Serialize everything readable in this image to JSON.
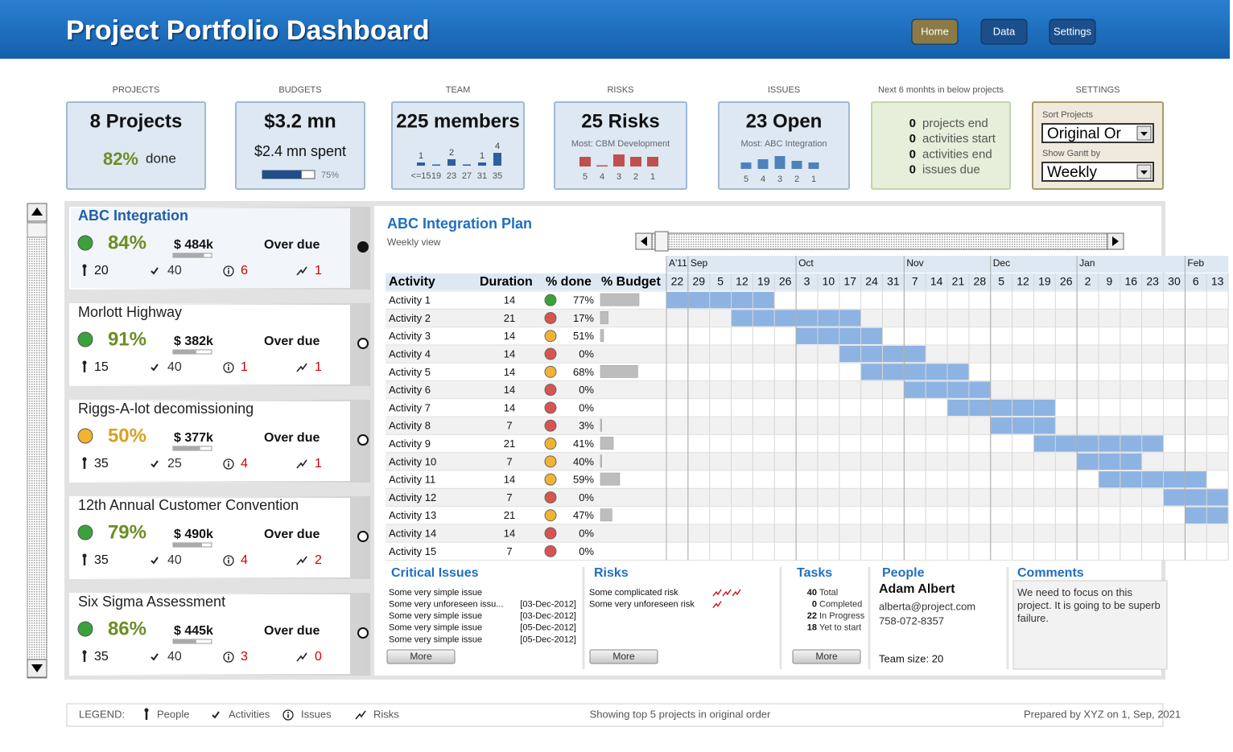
{
  "header": {
    "title": "Project Portfolio Dashboard",
    "nav": [
      "Home",
      "Data",
      "Settings"
    ]
  },
  "kpis": {
    "projects": {
      "label": "PROJECTS",
      "value": "8 Projects",
      "done": "82%",
      "done_label": "done"
    },
    "budgets": {
      "label": "BUDGETS",
      "value": "$3.2 mn",
      "spent": "$2.4 mn spent",
      "progress": 75,
      "progress_label": "75%"
    },
    "team": {
      "label": "TEAM",
      "value": "225 members",
      "chart": {
        "type": "bar",
        "categories": [
          "<=15",
          "19",
          "23",
          "27",
          "31",
          "35"
        ],
        "values": [
          1,
          0,
          2,
          0,
          1,
          4
        ],
        "value_labels": [
          "1",
          null,
          "2",
          null,
          "1",
          "4"
        ],
        "color": "#2f5f9e"
      }
    },
    "risks": {
      "label": "RISKS",
      "value": "25 Risks",
      "note": "Most: CBM Development",
      "chart": {
        "type": "bar",
        "categories": [
          5,
          4,
          3,
          2,
          1
        ],
        "values": [
          4,
          0,
          5,
          4,
          4
        ],
        "color": "#c0504d"
      }
    },
    "issues": {
      "label": "ISSUES",
      "value": "23 Open",
      "note": "Most: ABC Integration",
      "chart": {
        "type": "bar",
        "categories": [
          5,
          4,
          3,
          2,
          1
        ],
        "values": [
          2,
          3,
          4,
          2.5,
          2
        ],
        "color": "#4f81bd"
      }
    },
    "next": {
      "label": "Next 6 monhts in below projects",
      "items": [
        {
          "value": 0,
          "label": "projects end"
        },
        {
          "value": 0,
          "label": "activities start"
        },
        {
          "value": 0,
          "label": "activities end"
        },
        {
          "value": 0,
          "label": "issues due"
        }
      ]
    },
    "settings": {
      "label": "SETTINGS",
      "sort_label": "Sort Projects",
      "sort_value": "Original Or",
      "gantt_label": "Show Gantt by",
      "gantt_value": "Weekly"
    }
  },
  "projects": [
    {
      "name": "ABC Integration",
      "status": "#3aa23a",
      "done": "84%",
      "done_color": "#6b8e23",
      "budget": "$ 484k",
      "budget_used": 80,
      "state": "Over due",
      "people": 20,
      "activities": 40,
      "issues": 6,
      "risks": 1,
      "selected": true
    },
    {
      "name": "Morlott Highway",
      "status": "#3aa23a",
      "done": "91%",
      "done_color": "#6b8e23",
      "budget": "$ 382k",
      "budget_used": 60,
      "state": "Over due",
      "people": 15,
      "activities": 40,
      "issues": 1,
      "risks": 1,
      "selected": false
    },
    {
      "name": "Riggs-A-lot decomissioning",
      "status": "#f2b330",
      "done": "50%",
      "done_color": "#d9a020",
      "budget": "$ 377k",
      "budget_used": 70,
      "state": "Over due",
      "people": 35,
      "activities": 25,
      "issues": 4,
      "risks": 1,
      "selected": false
    },
    {
      "name": "12th Annual Customer Convention",
      "status": "#3aa23a",
      "done": "79%",
      "done_color": "#6b8e23",
      "budget": "$ 490k",
      "budget_used": 75,
      "state": "Over due",
      "people": 35,
      "activities": 40,
      "issues": 4,
      "risks": 2,
      "selected": false
    },
    {
      "name": "Six Sigma Assessment",
      "status": "#3aa23a",
      "done": "86%",
      "done_color": "#6b8e23",
      "budget": "$ 445k",
      "budget_used": 60,
      "state": "Over due",
      "people": 35,
      "activities": 40,
      "issues": 3,
      "risks": 0,
      "selected": false
    }
  ],
  "plan": {
    "title": "ABC Integration Plan",
    "subtitle": "Weekly view",
    "columns": [
      "Activity",
      "Duration",
      "% done",
      "% Budget"
    ],
    "months": [
      {
        "label": "A'11",
        "start": 0
      },
      {
        "label": "Sep",
        "start": 1
      },
      {
        "label": "Oct",
        "start": 6
      },
      {
        "label": "Nov",
        "start": 11
      },
      {
        "label": "Dec",
        "start": 15
      },
      {
        "label": "Jan",
        "start": 19
      },
      {
        "label": "Feb",
        "start": 24
      }
    ],
    "weeks": [
      22,
      29,
      5,
      12,
      19,
      26,
      3,
      10,
      17,
      24,
      31,
      7,
      14,
      21,
      28,
      5,
      12,
      19,
      26,
      2,
      9,
      16,
      23,
      30,
      6,
      13
    ],
    "activities": [
      {
        "name": "Activity 1",
        "duration": 14,
        "status": "#3aa23a",
        "done": "77%",
        "budget": 60,
        "start": 0,
        "weeks": 5
      },
      {
        "name": "Activity 2",
        "duration": 21,
        "status": "#d9534f",
        "done": "17%",
        "budget": 12,
        "start": 3,
        "weeks": 6
      },
      {
        "name": "Activity 3",
        "duration": 14,
        "status": "#f2b330",
        "done": "51%",
        "budget": 5,
        "start": 6,
        "weeks": 4
      },
      {
        "name": "Activity 4",
        "duration": 14,
        "status": "#d9534f",
        "done": "0%",
        "budget": 0,
        "start": 8,
        "weeks": 4
      },
      {
        "name": "Activity 5",
        "duration": 14,
        "status": "#f2b330",
        "done": "68%",
        "budget": 58,
        "start": 9,
        "weeks": 5
      },
      {
        "name": "Activity 6",
        "duration": 14,
        "status": "#d9534f",
        "done": "0%",
        "budget": 0,
        "start": 11,
        "weeks": 4
      },
      {
        "name": "Activity 7",
        "duration": 14,
        "status": "#d9534f",
        "done": "0%",
        "budget": 0,
        "start": 13,
        "weeks": 5
      },
      {
        "name": "Activity 8",
        "duration": 7,
        "status": "#d9534f",
        "done": "3%",
        "budget": 2,
        "start": 15,
        "weeks": 3
      },
      {
        "name": "Activity 9",
        "duration": 21,
        "status": "#f2b330",
        "done": "41%",
        "budget": 20,
        "start": 17,
        "weeks": 6
      },
      {
        "name": "Activity 10",
        "duration": 7,
        "status": "#f2b330",
        "done": "40%",
        "budget": 2,
        "start": 19,
        "weeks": 3
      },
      {
        "name": "Activity 11",
        "duration": 14,
        "status": "#f2b330",
        "done": "59%",
        "budget": 30,
        "start": 20,
        "weeks": 5
      },
      {
        "name": "Activity 12",
        "duration": 7,
        "status": "#d9534f",
        "done": "0%",
        "budget": 0,
        "start": 23,
        "weeks": 3
      },
      {
        "name": "Activity 13",
        "duration": 21,
        "status": "#f2b330",
        "done": "47%",
        "budget": 18,
        "start": 24,
        "weeks": 2
      },
      {
        "name": "Activity 14",
        "duration": 14,
        "status": "#d9534f",
        "done": "0%",
        "budget": 0,
        "start": null,
        "weeks": null
      },
      {
        "name": "Activity 15",
        "duration": 7,
        "status": "#d9534f",
        "done": "0%",
        "budget": 0,
        "start": null,
        "weeks": null
      }
    ]
  },
  "bottom": {
    "more": "More",
    "critical_issues": {
      "title": "Critical Issues",
      "items": [
        {
          "text": "Some very simple issue",
          "date": null
        },
        {
          "text": "Some very unforeseen issu...",
          "date": "[03-Dec-2012]"
        },
        {
          "text": "Some very simple issue",
          "date": "[03-Dec-2012]"
        },
        {
          "text": "Some very simple issue",
          "date": "[05-Dec-2012]"
        },
        {
          "text": "Some very simple issue",
          "date": "[05-Dec-2012]"
        }
      ]
    },
    "risks": {
      "title": "Risks",
      "items": [
        {
          "text": "Some complicated risk",
          "level": 3
        },
        {
          "text": "Some very unforeseen risk",
          "level": 1
        }
      ]
    },
    "tasks": {
      "title": "Tasks",
      "items": [
        {
          "value": 40,
          "label": "Total"
        },
        {
          "value": 0,
          "label": "Completed"
        },
        {
          "value": 22,
          "label": "In Progress"
        },
        {
          "value": 18,
          "label": "Yet to start"
        }
      ]
    },
    "people": {
      "title": "People",
      "name": "Adam Albert",
      "email": "alberta@project.com",
      "phone": "758-072-8357",
      "team_size": "Team size: 20"
    },
    "comments": {
      "title": "Comments",
      "text": "We need to focus on this project. It is going to be superb failure."
    }
  },
  "footer": {
    "legend_label": "LEGEND:",
    "legend": [
      "People",
      "Activities",
      "Issues",
      "Risks"
    ],
    "note": "Showing top 5 projects in original order",
    "prepared": "Prepared by XYZ on 1, Sep, 2021"
  }
}
